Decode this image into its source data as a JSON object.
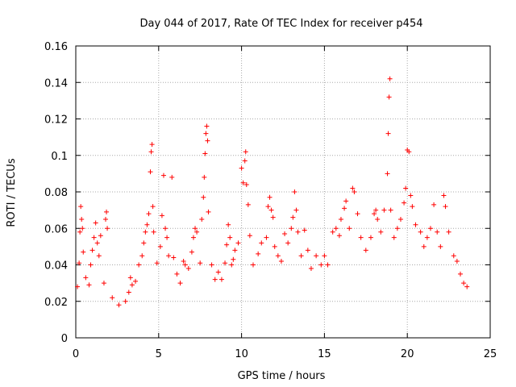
{
  "chart_data": {
    "type": "scatter",
    "title": "Day 044 of 2017, Rate Of TEC Index for receiver p454",
    "xlabel": "GPS time / hours",
    "ylabel": "ROTI / TECUs",
    "xlim": [
      0,
      25
    ],
    "ylim": [
      0,
      0.16
    ],
    "x_ticks": [
      0,
      5,
      10,
      15,
      20,
      25
    ],
    "y_ticks": [
      0,
      0.02,
      0.04,
      0.06,
      0.08,
      0.1,
      0.12,
      0.14,
      0.16
    ],
    "x_tick_labels": [
      "0",
      "5",
      "10",
      "15",
      "20",
      "25"
    ],
    "y_tick_labels": [
      "0",
      "0.02",
      "0.04",
      "0.06",
      "0.08",
      "0.1",
      "0.12",
      "0.14",
      "0.16"
    ],
    "grid": true,
    "marker": "+",
    "color": "#ff0000",
    "series": [
      {
        "name": "ROTI",
        "points": [
          [
            0.1,
            0.028
          ],
          [
            0.2,
            0.041
          ],
          [
            0.25,
            0.058
          ],
          [
            0.3,
            0.072
          ],
          [
            0.35,
            0.065
          ],
          [
            0.4,
            0.06
          ],
          [
            0.45,
            0.047
          ],
          [
            0.6,
            0.033
          ],
          [
            0.8,
            0.029
          ],
          [
            0.9,
            0.04
          ],
          [
            1.0,
            0.048
          ],
          [
            1.1,
            0.055
          ],
          [
            1.2,
            0.063
          ],
          [
            1.3,
            0.052
          ],
          [
            1.4,
            0.045
          ],
          [
            1.5,
            0.056
          ],
          [
            1.7,
            0.03
          ],
          [
            1.8,
            0.065
          ],
          [
            1.85,
            0.069
          ],
          [
            1.9,
            0.06
          ],
          [
            2.2,
            0.022
          ],
          [
            2.6,
            0.018
          ],
          [
            3.0,
            0.02
          ],
          [
            3.2,
            0.025
          ],
          [
            3.3,
            0.033
          ],
          [
            3.4,
            0.029
          ],
          [
            3.6,
            0.031
          ],
          [
            3.8,
            0.04
          ],
          [
            4.0,
            0.045
          ],
          [
            4.1,
            0.052
          ],
          [
            4.2,
            0.058
          ],
          [
            4.3,
            0.062
          ],
          [
            4.4,
            0.068
          ],
          [
            4.5,
            0.091
          ],
          [
            4.55,
            0.102
          ],
          [
            4.6,
            0.106
          ],
          [
            4.65,
            0.072
          ],
          [
            4.7,
            0.058
          ],
          [
            4.9,
            0.041
          ],
          [
            5.1,
            0.05
          ],
          [
            5.2,
            0.067
          ],
          [
            5.3,
            0.089
          ],
          [
            5.4,
            0.06
          ],
          [
            5.5,
            0.055
          ],
          [
            5.6,
            0.045
          ],
          [
            5.8,
            0.088
          ],
          [
            5.9,
            0.044
          ],
          [
            6.1,
            0.035
          ],
          [
            6.3,
            0.03
          ],
          [
            6.5,
            0.042
          ],
          [
            6.6,
            0.04
          ],
          [
            6.8,
            0.038
          ],
          [
            7.0,
            0.047
          ],
          [
            7.1,
            0.055
          ],
          [
            7.2,
            0.06
          ],
          [
            7.3,
            0.058
          ],
          [
            7.5,
            0.041
          ],
          [
            7.6,
            0.065
          ],
          [
            7.7,
            0.077
          ],
          [
            7.75,
            0.088
          ],
          [
            7.8,
            0.101
          ],
          [
            7.85,
            0.112
          ],
          [
            7.9,
            0.116
          ],
          [
            7.95,
            0.108
          ],
          [
            8.0,
            0.069
          ],
          [
            8.2,
            0.04
          ],
          [
            8.4,
            0.032
          ],
          [
            8.6,
            0.036
          ],
          [
            8.8,
            0.032
          ],
          [
            9.0,
            0.041
          ],
          [
            9.1,
            0.051
          ],
          [
            9.2,
            0.062
          ],
          [
            9.3,
            0.055
          ],
          [
            9.4,
            0.04
          ],
          [
            9.5,
            0.043
          ],
          [
            9.6,
            0.048
          ],
          [
            9.8,
            0.052
          ],
          [
            10.0,
            0.093
          ],
          [
            10.1,
            0.085
          ],
          [
            10.2,
            0.097
          ],
          [
            10.25,
            0.102
          ],
          [
            10.3,
            0.084
          ],
          [
            10.4,
            0.073
          ],
          [
            10.5,
            0.056
          ],
          [
            10.7,
            0.04
          ],
          [
            11.0,
            0.046
          ],
          [
            11.2,
            0.052
          ],
          [
            11.5,
            0.055
          ],
          [
            11.6,
            0.072
          ],
          [
            11.7,
            0.077
          ],
          [
            11.8,
            0.07
          ],
          [
            11.9,
            0.066
          ],
          [
            12.0,
            0.05
          ],
          [
            12.2,
            0.045
          ],
          [
            12.4,
            0.042
          ],
          [
            12.6,
            0.057
          ],
          [
            12.8,
            0.052
          ],
          [
            13.0,
            0.06
          ],
          [
            13.1,
            0.066
          ],
          [
            13.2,
            0.08
          ],
          [
            13.3,
            0.07
          ],
          [
            13.4,
            0.058
          ],
          [
            13.6,
            0.045
          ],
          [
            13.8,
            0.059
          ],
          [
            14.0,
            0.048
          ],
          [
            14.2,
            0.038
          ],
          [
            14.5,
            0.045
          ],
          [
            14.8,
            0.04
          ],
          [
            15.0,
            0.045
          ],
          [
            15.2,
            0.04
          ],
          [
            15.5,
            0.058
          ],
          [
            15.7,
            0.06
          ],
          [
            15.9,
            0.056
          ],
          [
            16.0,
            0.065
          ],
          [
            16.2,
            0.071
          ],
          [
            16.3,
            0.075
          ],
          [
            16.5,
            0.06
          ],
          [
            16.7,
            0.082
          ],
          [
            16.8,
            0.08
          ],
          [
            17.0,
            0.068
          ],
          [
            17.2,
            0.055
          ],
          [
            17.5,
            0.048
          ],
          [
            17.8,
            0.055
          ],
          [
            18.0,
            0.068
          ],
          [
            18.1,
            0.07
          ],
          [
            18.2,
            0.065
          ],
          [
            18.4,
            0.058
          ],
          [
            18.6,
            0.07
          ],
          [
            18.8,
            0.09
          ],
          [
            18.85,
            0.112
          ],
          [
            18.9,
            0.132
          ],
          [
            18.95,
            0.142
          ],
          [
            19.0,
            0.07
          ],
          [
            19.2,
            0.055
          ],
          [
            19.4,
            0.06
          ],
          [
            19.6,
            0.065
          ],
          [
            19.8,
            0.074
          ],
          [
            19.9,
            0.082
          ],
          [
            20.0,
            0.103
          ],
          [
            20.1,
            0.102
          ],
          [
            20.2,
            0.078
          ],
          [
            20.3,
            0.072
          ],
          [
            20.5,
            0.062
          ],
          [
            20.8,
            0.058
          ],
          [
            21.0,
            0.05
          ],
          [
            21.2,
            0.055
          ],
          [
            21.4,
            0.06
          ],
          [
            21.6,
            0.073
          ],
          [
            21.8,
            0.058
          ],
          [
            22.0,
            0.05
          ],
          [
            22.2,
            0.078
          ],
          [
            22.3,
            0.072
          ],
          [
            22.5,
            0.058
          ],
          [
            22.8,
            0.045
          ],
          [
            23.0,
            0.042
          ],
          [
            23.2,
            0.035
          ],
          [
            23.4,
            0.03
          ],
          [
            23.6,
            0.028
          ]
        ]
      }
    ]
  }
}
